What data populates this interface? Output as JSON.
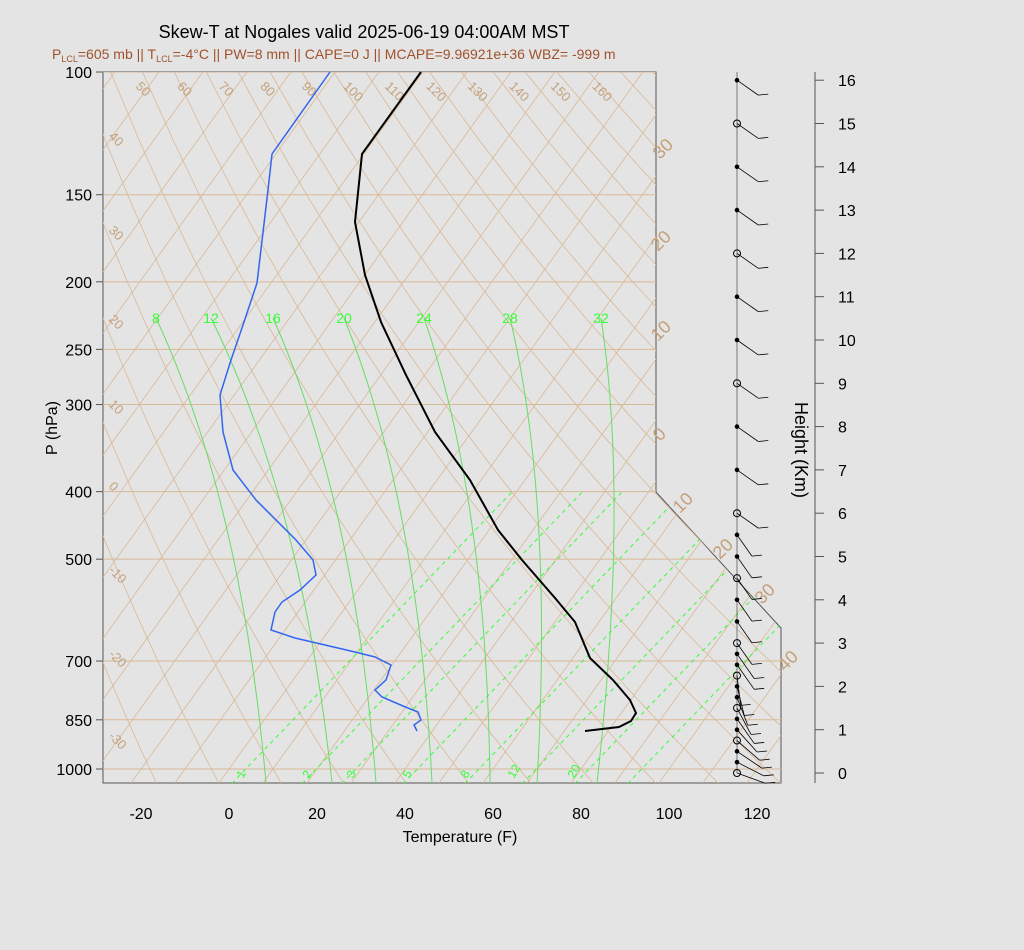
{
  "colors": {
    "background": "#e4e4e4",
    "plot_background": "#e4e4e4",
    "grid": "#d9b896",
    "grid_text": "#c4a07a",
    "mixing_ratio": "#33ff33",
    "moist_adiabat": "#66dd66",
    "temperature": "#000000",
    "dewpoint": "#3366ee",
    "subtitle": "#a0522d",
    "wind": "#000000"
  },
  "chart_data": {
    "type": "skew-t",
    "title": "Skew-T at Nogales valid 2025-06-19 04:00AM MST",
    "subtitle": {
      "lcl_p": "=605 mb || T",
      "lcl_t": "=-4°C || PW=8 mm || CAPE=0 J || MCAPE=9.96921e+36 WBZ= -999 m",
      "lcl_label": "LCL",
      "p_prefix": "P",
      "degree_c": "°C"
    },
    "xlabel": "Temperature (F)",
    "ylabel": "P (hPa)",
    "y2label": "Height (Km)",
    "xlim": [
      -28,
      125
    ],
    "ylim": [
      1050,
      100
    ],
    "x_ticks": [
      "-20",
      "0",
      "20",
      "40",
      "60",
      "80",
      "100",
      "120"
    ],
    "x_tick_values": [
      -20,
      0,
      20,
      40,
      60,
      80,
      100,
      120
    ],
    "p_ticks": [
      "100",
      "150",
      "200",
      "250",
      "300",
      "400",
      "500",
      "700",
      "850",
      "1000"
    ],
    "p_tick_values": [
      100,
      150,
      200,
      250,
      300,
      400,
      500,
      700,
      850,
      1000
    ],
    "height_ticks": [
      "0",
      "1",
      "2",
      "3",
      "4",
      "5",
      "6",
      "7",
      "8",
      "9",
      "10",
      "11",
      "12",
      "13",
      "14",
      "15",
      "16"
    ],
    "height_tick_values": [
      0,
      1,
      2,
      3,
      4,
      5,
      6,
      7,
      8,
      9,
      10,
      11,
      12,
      13,
      14,
      15,
      16
    ],
    "isotherm_labels_f": [
      "50",
      "60",
      "70",
      "80",
      "90",
      "100",
      "110",
      "120",
      "130",
      "140",
      "150",
      "160"
    ],
    "isotherm_label_values_f": [
      50,
      60,
      70,
      80,
      90,
      100,
      110,
      120,
      130,
      140,
      150,
      160
    ],
    "left_isotherm_labels_f": [
      "40",
      "30",
      "20",
      "10",
      "0",
      "-10",
      "-20",
      "-30"
    ],
    "right_isotherm_labels_c": [
      "30",
      "20",
      "10",
      "0",
      "10",
      "20",
      "30",
      "40"
    ],
    "mixing_ratio_labels_top": [
      "8",
      "12",
      "16",
      "20",
      "24",
      "28",
      "32"
    ],
    "mixing_ratio_labels_bottom": [
      "1",
      "2",
      "3",
      "5",
      "8",
      "12",
      "20"
    ],
    "temperature_profile": [
      {
        "p": 100,
        "t": 44
      },
      {
        "p": 130,
        "t": 30
      },
      {
        "p": 160,
        "t": 28
      },
      {
        "p": 200,
        "t": 29
      },
      {
        "p": 250,
        "t": 30
      },
      {
        "p": 300,
        "t": 31
      },
      {
        "p": 400,
        "t": 33
      },
      {
        "p": 500,
        "t": 30
      },
      {
        "p": 600,
        "t": 40
      },
      {
        "p": 700,
        "t": 54
      },
      {
        "p": 800,
        "t": 74
      },
      {
        "p": 850,
        "t": 80
      },
      {
        "p": 900,
        "t": 67
      }
    ],
    "dewpoint_profile": [
      {
        "p": 100,
        "t": -17
      },
      {
        "p": 130,
        "t": -30
      },
      {
        "p": 200,
        "t": -37
      },
      {
        "p": 250,
        "t": -42
      },
      {
        "p": 300,
        "t": -42
      },
      {
        "p": 400,
        "t": -37
      },
      {
        "p": 480,
        "t": -26
      },
      {
        "p": 540,
        "t": -25
      },
      {
        "p": 600,
        "t": -22
      },
      {
        "p": 650,
        "t": -18
      },
      {
        "p": 700,
        "t": 14
      },
      {
        "p": 780,
        "t": 15
      },
      {
        "p": 850,
        "t": 34
      },
      {
        "p": 900,
        "t": 32
      }
    ],
    "wind_heights_km": [
      0.0,
      0.25,
      0.5,
      0.75,
      1.0,
      1.25,
      1.5,
      1.75,
      2.0,
      2.25,
      2.5,
      2.75,
      3.0,
      3.5,
      4.0,
      4.5,
      5.0,
      5.5,
      6.0,
      7.0,
      8.0,
      9.0,
      10.0,
      11.0,
      12.0,
      13.0,
      14.0,
      15.0,
      16.0
    ],
    "grid": true
  }
}
